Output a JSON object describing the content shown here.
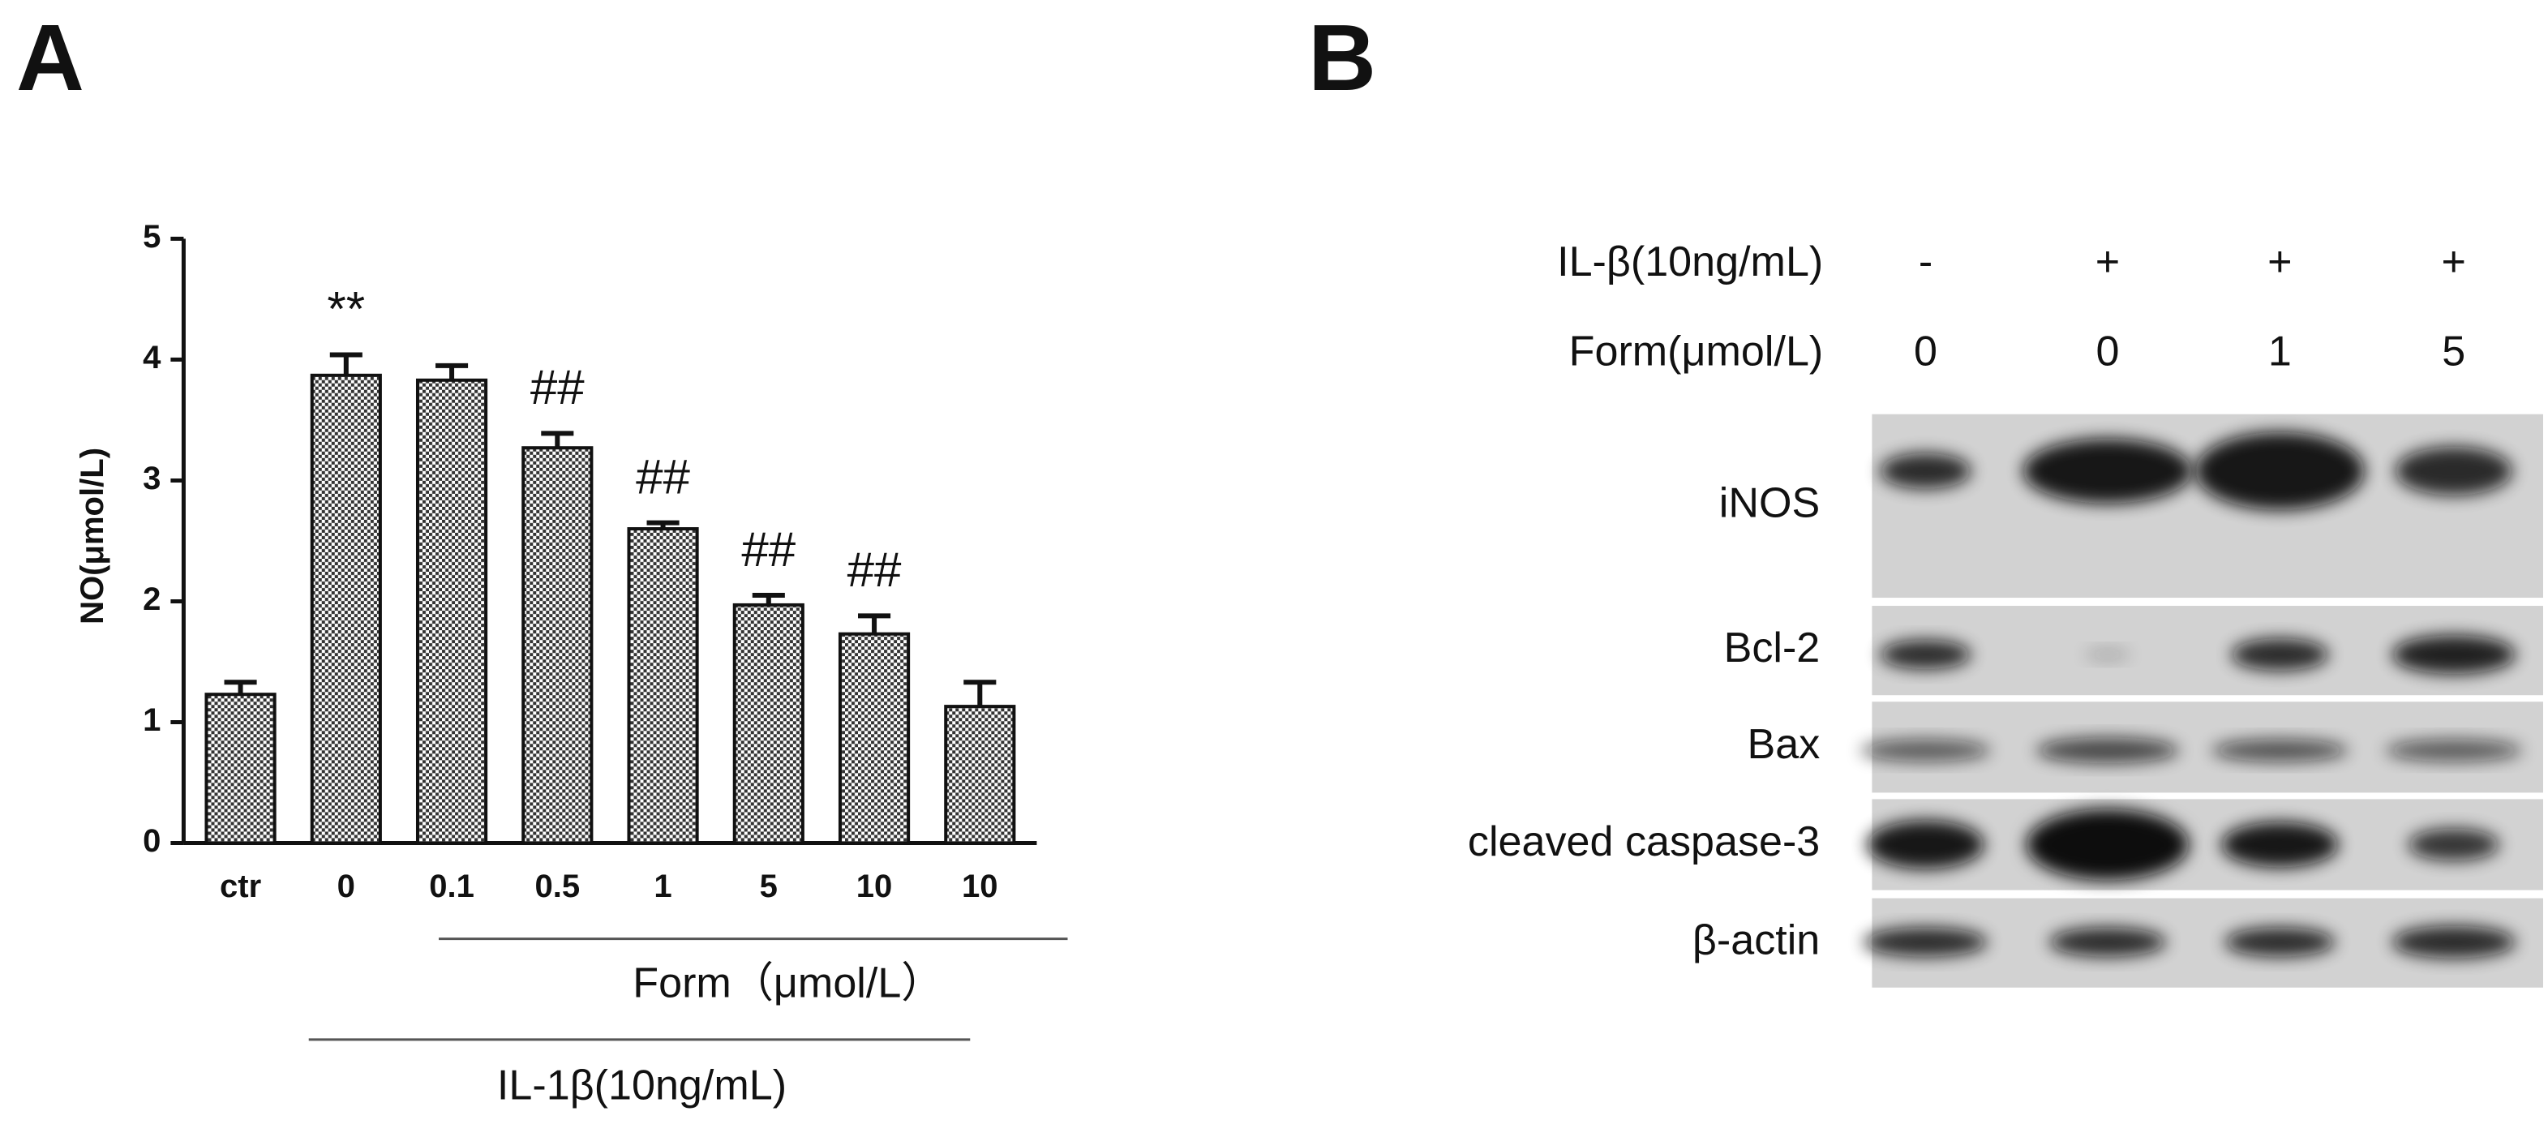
{
  "chart_data": {
    "type": "bar",
    "panel": "A",
    "y_label": "NO(μmol/L)",
    "categories": [
      "ctr",
      "0",
      "0.1",
      "0.5",
      "1",
      "5",
      "10",
      "10"
    ],
    "values": [
      1.23,
      3.87,
      3.83,
      3.27,
      2.6,
      1.97,
      1.73,
      1.13
    ],
    "errors": [
      0.1,
      0.17,
      0.12,
      0.12,
      0.05,
      0.08,
      0.15,
      0.2
    ],
    "value_annotations": [
      null,
      "**",
      null,
      "##",
      "##",
      "##",
      "##",
      null
    ],
    "group_labels": [
      "Form（μmol/L）",
      "IL-1β(10ng/mL)"
    ],
    "ylim": [
      0,
      5
    ],
    "yticks": [
      0,
      1,
      2,
      3,
      4,
      5
    ]
  },
  "blot": {
    "panel": "B",
    "conditions": [
      {
        "label": "IL-β(10ng/mL)",
        "values": [
          "-",
          "+",
          "+",
          "+"
        ]
      },
      {
        "label": "Form(μmol/L)",
        "values": [
          "0",
          "0",
          "1",
          "5"
        ]
      }
    ],
    "bands": [
      "iNOS",
      "Bcl-2",
      "Bax",
      "cleaved caspase-3",
      "β-actin"
    ]
  }
}
